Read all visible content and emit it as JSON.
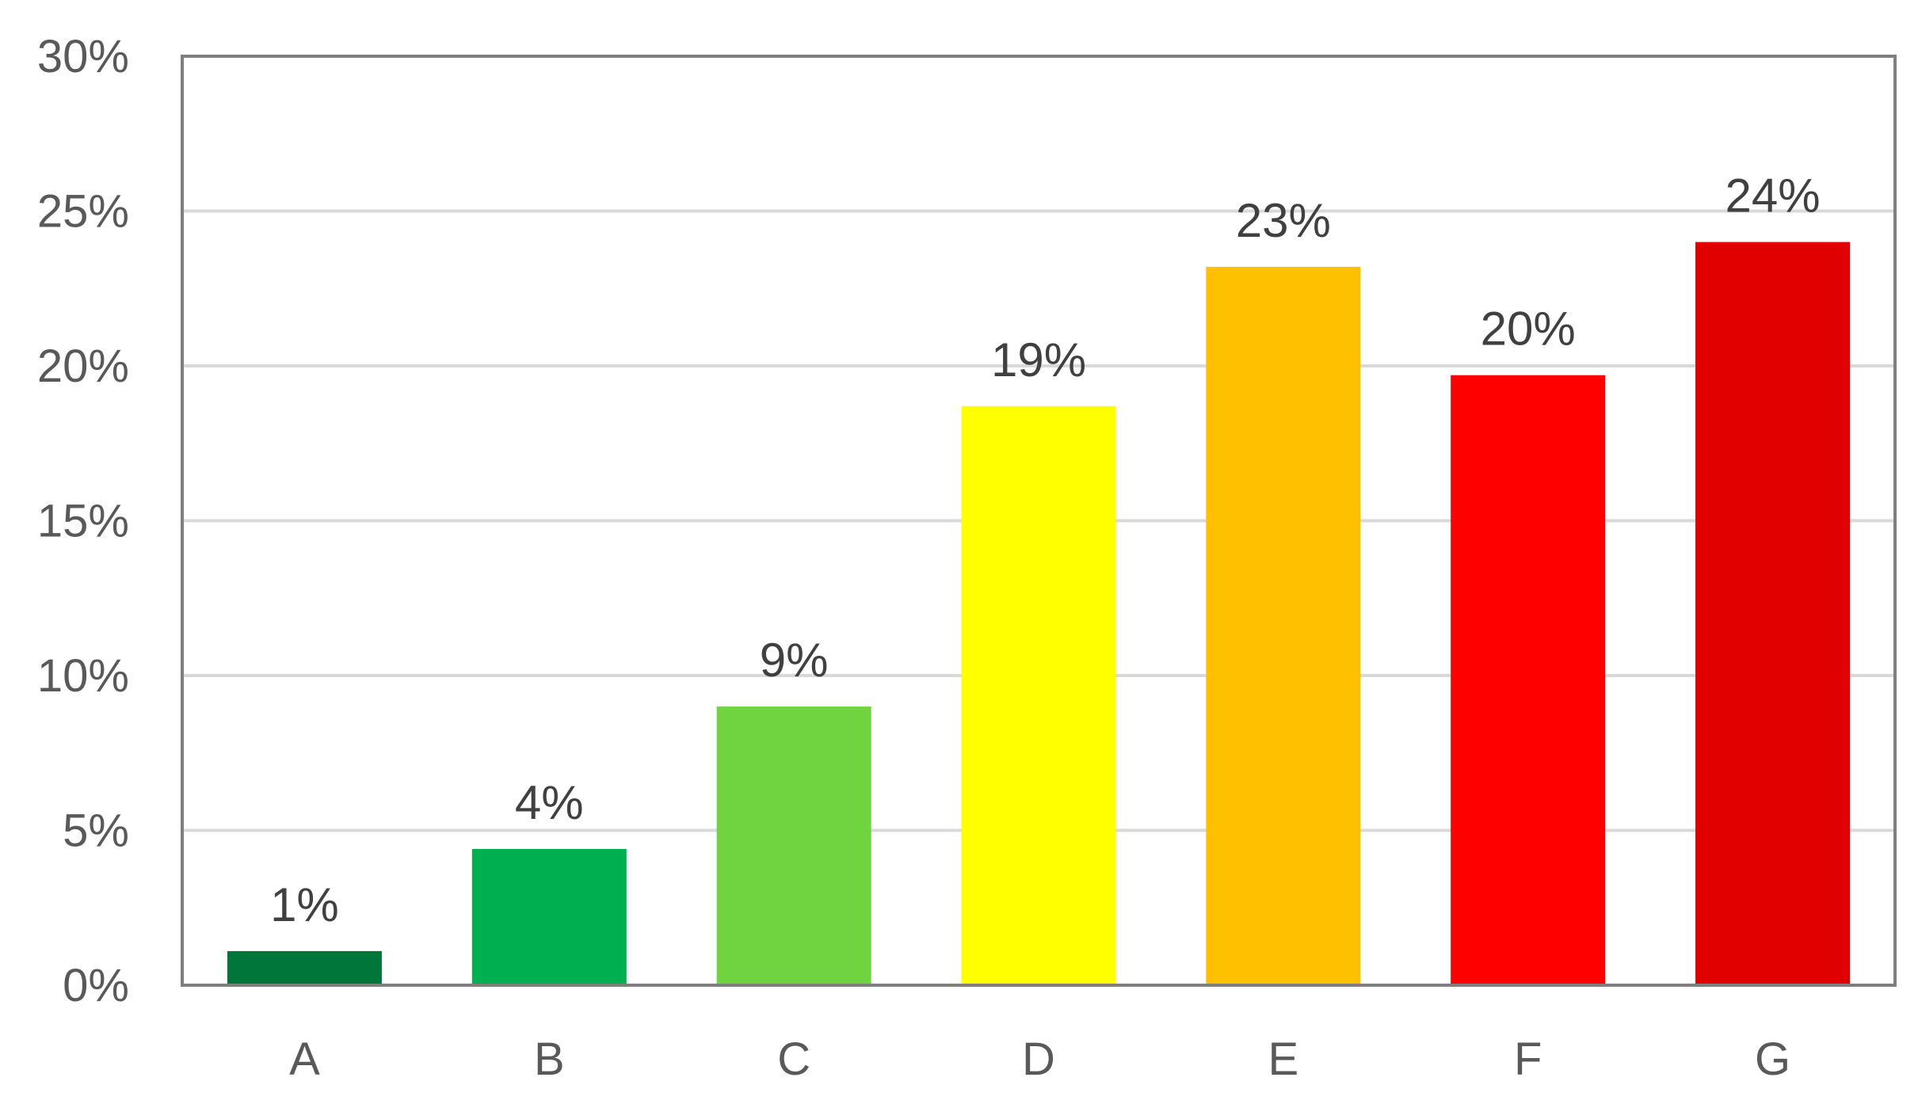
{
  "chart_data": {
    "type": "bar",
    "categories": [
      "A",
      "B",
      "C",
      "D",
      "E",
      "F",
      "G"
    ],
    "values": [
      1.1,
      4.4,
      9.0,
      18.7,
      23.2,
      19.7,
      24.0
    ],
    "data_labels": [
      "1%",
      "4%",
      "9%",
      "19%",
      "23%",
      "20%",
      "24%"
    ],
    "colors": [
      "#00763A",
      "#00B050",
      "#6FD440",
      "#FFFF00",
      "#FFC000",
      "#FF0000",
      "#E00000"
    ],
    "title": "",
    "xlabel": "",
    "ylabel": "",
    "ylim": [
      0,
      30
    ],
    "yticks": [
      0,
      5,
      10,
      15,
      20,
      25,
      30
    ],
    "ytick_labels": [
      "0%",
      "5%",
      "10%",
      "15%",
      "20%",
      "25%",
      "30%"
    ],
    "grid": true,
    "legend": "none",
    "grid_color": "#D9D9D9",
    "axis_color": "#7F7F7F"
  }
}
